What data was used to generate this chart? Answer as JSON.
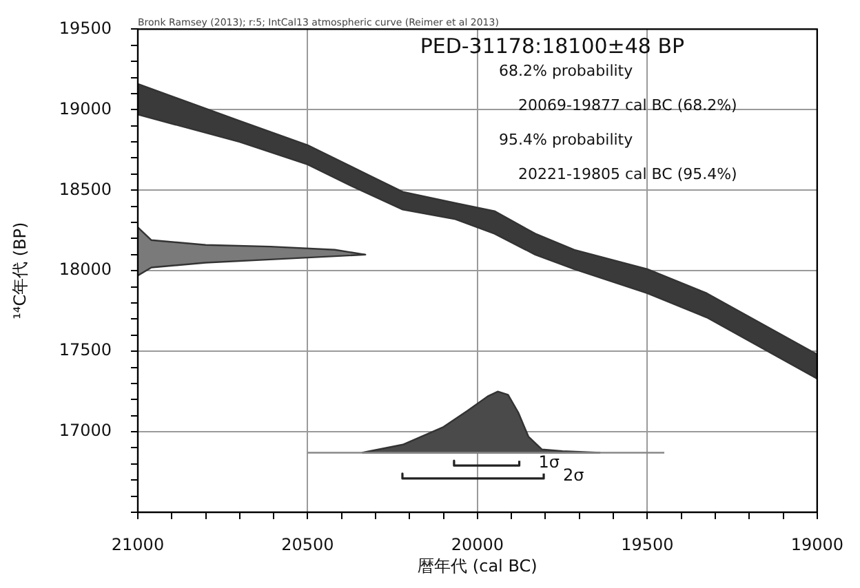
{
  "chart_data": {
    "type": "area",
    "title": "PED-31178:18100±48 BP",
    "subtitle": "Bronk Ramsey (2013); r:5; IntCal13 atmospheric curve (Reimer et al 2013)",
    "xlabel": "暦年代 (cal BC)",
    "ylabel": "¹⁴C年代 (BP)",
    "annotations": [
      "68.2% probability",
      "20069-19877 cal BC (68.2%)",
      "95.4% probability",
      "20221-19805 cal BC (95.4%)"
    ],
    "xlim": [
      21000,
      19000
    ],
    "ylim": [
      16500,
      19500
    ],
    "xticks": [
      21000,
      {
        "value": 20900,
        "label": null
      },
      {
        "value": 20800,
        "label": null
      },
      {
        "value": 20700,
        "label": null
      },
      {
        "value": 20600,
        "label": null
      },
      20500,
      {
        "value": 20400,
        "label": null
      },
      {
        "value": 20300,
        "label": null
      },
      {
        "value": 20200,
        "label": null
      },
      {
        "value": 20100,
        "label": null
      },
      20000,
      {
        "value": 19900,
        "label": null
      },
      {
        "value": 19800,
        "label": null
      },
      {
        "value": 19700,
        "label": null
      },
      {
        "value": 19600,
        "label": null
      },
      19500,
      {
        "value": 19400,
        "label": null
      },
      {
        "value": 19300,
        "label": null
      },
      {
        "value": 19200,
        "label": null
      },
      {
        "value": 19100,
        "label": null
      },
      19000
    ],
    "yticks": [
      {
        "value": 16500,
        "label": null
      },
      {
        "value": 16600,
        "label": null
      },
      {
        "value": 16700,
        "label": null
      },
      {
        "value": 16800,
        "label": null
      },
      {
        "value": 16900,
        "label": null
      },
      17000,
      {
        "value": 17100,
        "label": null
      },
      {
        "value": 17200,
        "label": null
      },
      {
        "value": 17300,
        "label": null
      },
      {
        "value": 17400,
        "label": null
      },
      17500,
      {
        "value": 17600,
        "label": null
      },
      {
        "value": 17700,
        "label": null
      },
      {
        "value": 17800,
        "label": null
      },
      {
        "value": 17900,
        "label": null
      },
      18000,
      {
        "value": 18100,
        "label": null
      },
      {
        "value": 18200,
        "label": null
      },
      {
        "value": 18300,
        "label": null
      },
      {
        "value": 18400,
        "label": null
      },
      18500,
      {
        "value": 18600,
        "label": null
      },
      {
        "value": 18700,
        "label": null
      },
      {
        "value": 18800,
        "label": null
      },
      {
        "value": 18900,
        "label": null
      },
      19000,
      {
        "value": 19100,
        "label": null
      },
      {
        "value": 19200,
        "label": null
      },
      {
        "value": 19300,
        "label": null
      },
      {
        "value": 19400,
        "label": null
      },
      19500
    ],
    "grid": true,
    "legend": false,
    "marker": "none",
    "series": [
      {
        "color": "#3a3a3a",
        "x": [
          21000,
          20700,
          20500,
          20375,
          20220,
          20065,
          19950,
          19830,
          19715,
          19500,
          19325,
          19000,
          19000,
          19325,
          19500,
          19715,
          19830,
          19950,
          20065,
          20220,
          20375,
          20500,
          20700,
          21000,
          21000
        ],
        "values": [
          19160,
          18930,
          18780,
          18650,
          18490,
          18420,
          18370,
          18230,
          18130,
          18010,
          17860,
          17480,
          17330,
          17710,
          17860,
          18010,
          18100,
          18230,
          18320,
          18380,
          18530,
          18660,
          18800,
          18970,
          19160
        ]
      },
      {
        "color": "#7a7a7a",
        "x": [
          21000,
          20960,
          20800,
          20610,
          20420,
          20330,
          20420,
          20610,
          20800,
          20960,
          21000
        ],
        "values": [
          18270,
          18190,
          18160,
          18150,
          18130,
          18100,
          18090,
          18070,
          18050,
          18020,
          17970
        ]
      },
      {
        "type": "line",
        "color": "#888888",
        "x": [
          20500,
          19450
        ],
        "values": [
          16870,
          16870
        ]
      },
      {
        "color": "#4a4a4a",
        "x": [
          20340,
          20220,
          20100,
          20030,
          19970,
          19940,
          19910,
          19880,
          19850,
          19810,
          19750,
          19640,
          20340
        ],
        "values": [
          16870,
          16920,
          17030,
          17130,
          17220,
          17250,
          17230,
          17120,
          16970,
          16890,
          16880,
          16870,
          16870
        ]
      },
      {
        "type": "line",
        "name": "1σ",
        "color": "#222222",
        "x": [
          20069,
          20069,
          19877,
          19877
        ],
        "values": [
          16820,
          16790,
          16790,
          16820
        ]
      },
      {
        "type": "line",
        "name": "2σ",
        "color": "#222222",
        "x": [
          20221,
          20221,
          19805,
          19805
        ],
        "values": [
          16740,
          16710,
          16710,
          16740
        ]
      }
    ]
  }
}
